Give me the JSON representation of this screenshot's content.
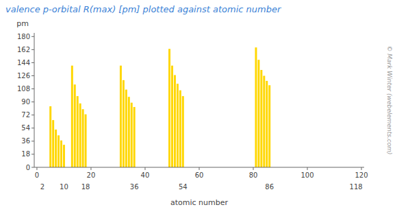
{
  "chart_data": {
    "type": "bar",
    "title": "valence p-orbital R(max) [pm] plotted against atomic number",
    "ylabel": "pm",
    "xlabel": "atomic number",
    "x": [
      5,
      6,
      7,
      8,
      9,
      10,
      13,
      14,
      15,
      16,
      17,
      18,
      31,
      32,
      33,
      34,
      35,
      36,
      49,
      50,
      51,
      52,
      53,
      54,
      81,
      82,
      83,
      84,
      85,
      86
    ],
    "values": [
      84,
      65,
      52,
      44,
      37,
      31,
      140,
      114,
      98,
      88,
      80,
      73,
      140,
      120,
      107,
      97,
      89,
      83,
      163,
      140,
      127,
      115,
      106,
      98,
      165,
      148,
      134,
      126,
      119,
      113
    ],
    "color": "#FFD700",
    "xlim": [
      -1,
      121
    ],
    "xticks": [
      0,
      20,
      40,
      60,
      80,
      100,
      120
    ],
    "x2ticks": [
      2,
      10,
      18,
      36,
      54,
      86,
      118
    ],
    "ylim": [
      0,
      185
    ],
    "yticks": [
      0,
      18,
      36,
      54,
      72,
      90,
      108,
      126,
      144,
      162,
      180
    ],
    "grid": false,
    "annotations": [
      "© Mark Winter (webelements.com)"
    ]
  }
}
